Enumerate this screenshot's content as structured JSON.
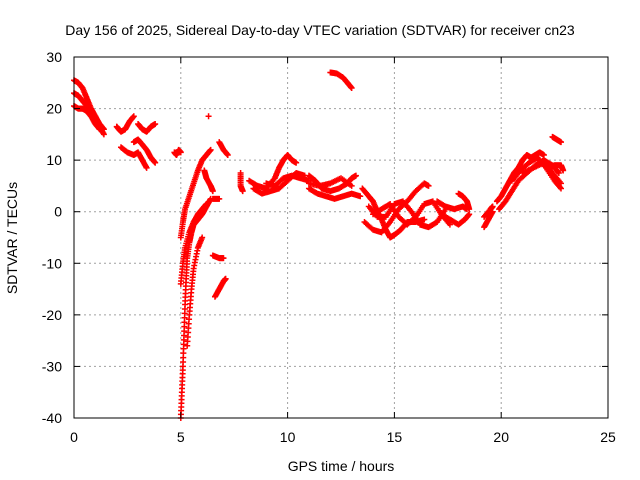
{
  "chart_data": {
    "type": "scatter",
    "title": "Day 156 of 2025, Sidereal Day-to-day VTEC variation (SDTVAR) for receiver cn23",
    "xlabel": "GPS time / hours",
    "ylabel": "SDTVAR / TECUs",
    "xlim": [
      0,
      25
    ],
    "ylim": [
      -40,
      30
    ],
    "xticks": [
      0,
      5,
      10,
      15,
      20,
      25
    ],
    "yticks": [
      -40,
      -30,
      -20,
      -10,
      0,
      10,
      20,
      30
    ],
    "grid": true,
    "marker": "+",
    "series": [
      {
        "name": "SDTVAR",
        "color": "#ff0000",
        "segments": [
          [
            [
              0.0,
              25.5
            ],
            [
              0.2,
              25.0
            ],
            [
              0.4,
              24.0
            ],
            [
              0.6,
              22.0
            ],
            [
              0.8,
              20.0
            ],
            [
              1.0,
              18.5
            ],
            [
              1.2,
              17.0
            ],
            [
              1.4,
              16.0
            ]
          ],
          [
            [
              0.0,
              23.0
            ],
            [
              0.2,
              22.5
            ],
            [
              0.4,
              21.5
            ],
            [
              0.6,
              20.5
            ],
            [
              0.8,
              19.5
            ],
            [
              1.0,
              18.0
            ],
            [
              1.2,
              16.5
            ],
            [
              1.4,
              15.0
            ]
          ],
          [
            [
              0.0,
              20.5
            ],
            [
              0.2,
              20.0
            ],
            [
              0.4,
              20.0
            ],
            [
              0.6,
              19.5
            ],
            [
              0.8,
              18.5
            ],
            [
              1.0,
              17.0
            ],
            [
              1.2,
              16.0
            ]
          ],
          [
            [
              2.0,
              16.5
            ],
            [
              2.2,
              15.5
            ],
            [
              2.4,
              16.0
            ],
            [
              2.6,
              17.5
            ],
            [
              2.8,
              18.5
            ]
          ],
          [
            [
              2.2,
              12.5
            ],
            [
              2.5,
              11.5
            ],
            [
              2.8,
              11.0
            ],
            [
              3.0,
              11.5
            ],
            [
              3.2,
              10.0
            ],
            [
              3.4,
              8.5
            ]
          ],
          [
            [
              2.8,
              13.5
            ],
            [
              3.0,
              14.0
            ],
            [
              3.2,
              13.0
            ],
            [
              3.4,
              12.0
            ],
            [
              3.6,
              10.5
            ],
            [
              3.8,
              9.5
            ]
          ],
          [
            [
              3.0,
              17.0
            ],
            [
              3.2,
              16.0
            ],
            [
              3.4,
              15.5
            ],
            [
              3.6,
              16.5
            ],
            [
              3.8,
              17.0
            ]
          ],
          [
            [
              4.7,
              11.5
            ],
            [
              4.8,
              11.0
            ],
            [
              4.9,
              12.0
            ],
            [
              5.0,
              11.5
            ]
          ],
          [
            [
              5.0,
              -40.0
            ],
            [
              5.05,
              -35.0
            ],
            [
              5.1,
              -30.0
            ],
            [
              5.15,
              -24.0
            ],
            [
              5.2,
              -18.0
            ],
            [
              5.25,
              -13.0
            ],
            [
              5.3,
              -9.0
            ],
            [
              5.4,
              -6.0
            ],
            [
              5.5,
              -4.0
            ],
            [
              5.6,
              -2.5
            ],
            [
              5.7,
              -2.0
            ],
            [
              5.8,
              -1.5
            ],
            [
              6.0,
              -0.5
            ],
            [
              6.2,
              1.0
            ],
            [
              6.4,
              2.5
            ]
          ],
          [
            [
              5.0,
              -5.0
            ],
            [
              5.1,
              -2.0
            ],
            [
              5.2,
              0.5
            ],
            [
              5.4,
              3.0
            ],
            [
              5.6,
              5.5
            ],
            [
              5.8,
              8.0
            ],
            [
              6.0,
              10.0
            ],
            [
              6.2,
              11.0
            ],
            [
              6.4,
              12.0
            ]
          ],
          [
            [
              5.0,
              -14.0
            ],
            [
              5.1,
              -10.0
            ],
            [
              5.2,
              -7.0
            ],
            [
              5.4,
              -4.0
            ],
            [
              5.6,
              -2.0
            ],
            [
              5.8,
              -0.5
            ],
            [
              6.0,
              0.5
            ],
            [
              6.2,
              1.5
            ]
          ],
          [
            [
              5.3,
              -26.0
            ],
            [
              5.4,
              -20.0
            ],
            [
              5.5,
              -15.0
            ],
            [
              5.6,
              -11.0
            ],
            [
              5.8,
              -7.0
            ],
            [
              6.0,
              -5.0
            ]
          ],
          [
            [
              6.1,
              8.0
            ],
            [
              6.2,
              6.5
            ],
            [
              6.4,
              5.0
            ],
            [
              6.5,
              4.0
            ]
          ],
          [
            [
              6.3,
              18.5
            ]
          ],
          [
            [
              6.5,
              2.5
            ],
            [
              6.8,
              2.5
            ]
          ],
          [
            [
              6.5,
              -8.5
            ],
            [
              6.8,
              -9.0
            ],
            [
              7.0,
              -9.0
            ]
          ],
          [
            [
              6.6,
              -16.5
            ],
            [
              6.8,
              -15.0
            ],
            [
              7.0,
              -13.5
            ],
            [
              7.1,
              -13.0
            ]
          ],
          [
            [
              6.8,
              13.5
            ],
            [
              7.0,
              12.0
            ],
            [
              7.2,
              11.0
            ]
          ],
          [
            [
              7.8,
              7.5
            ],
            [
              7.8,
              5.0
            ],
            [
              7.9,
              4.0
            ]
          ],
          [
            [
              8.2,
              6.0
            ],
            [
              8.6,
              5.0
            ],
            [
              9.0,
              4.5
            ],
            [
              9.4,
              6.5
            ],
            [
              9.6,
              8.5
            ],
            [
              9.8,
              10.0
            ],
            [
              10.0,
              11.0
            ],
            [
              10.2,
              10.0
            ],
            [
              10.4,
              9.5
            ]
          ],
          [
            [
              8.4,
              4.5
            ],
            [
              8.8,
              3.5
            ],
            [
              9.2,
              4.0
            ],
            [
              9.6,
              4.5
            ],
            [
              10.0,
              6.0
            ],
            [
              10.4,
              7.5
            ],
            [
              10.8,
              7.0
            ]
          ],
          [
            [
              9.0,
              5.5
            ],
            [
              9.4,
              5.0
            ],
            [
              9.8,
              6.5
            ],
            [
              10.2,
              7.0
            ],
            [
              10.6,
              6.5
            ],
            [
              11.0,
              6.0
            ]
          ],
          [
            [
              11.0,
              7.0
            ],
            [
              11.3,
              6.0
            ],
            [
              11.6,
              4.5
            ],
            [
              12.0,
              4.0
            ],
            [
              12.4,
              4.5
            ],
            [
              12.8,
              5.5
            ],
            [
              13.0,
              6.5
            ],
            [
              13.2,
              7.0
            ]
          ],
          [
            [
              11.0,
              4.5
            ],
            [
              11.4,
              3.5
            ],
            [
              11.8,
              3.0
            ],
            [
              12.2,
              2.5
            ],
            [
              12.6,
              3.0
            ],
            [
              13.0,
              3.5
            ],
            [
              13.4,
              3.0
            ]
          ],
          [
            [
              11.0,
              5.5
            ],
            [
              11.5,
              5.0
            ],
            [
              12.0,
              5.5
            ],
            [
              12.5,
              6.5
            ],
            [
              13.0,
              5.0
            ]
          ],
          [
            [
              12.0,
              27.0
            ],
            [
              12.3,
              26.8
            ],
            [
              12.6,
              26.0
            ],
            [
              12.8,
              25.0
            ],
            [
              13.0,
              24.0
            ]
          ],
          [
            [
              13.5,
              4.5
            ],
            [
              13.8,
              3.0
            ],
            [
              14.0,
              2.0
            ],
            [
              14.2,
              0.0
            ],
            [
              14.4,
              -1.5
            ],
            [
              14.6,
              -3.5
            ],
            [
              14.8,
              -5.0
            ],
            [
              15.0,
              -4.5
            ],
            [
              15.3,
              -3.5
            ],
            [
              15.6,
              -2.0
            ],
            [
              16.0,
              -2.0
            ],
            [
              16.4,
              -1.5
            ]
          ],
          [
            [
              13.6,
              -2.0
            ],
            [
              14.0,
              -3.5
            ],
            [
              14.4,
              -4.0
            ],
            [
              14.8,
              -2.0
            ],
            [
              15.2,
              0.5
            ],
            [
              15.6,
              2.0
            ],
            [
              16.0,
              4.0
            ],
            [
              16.4,
              5.5
            ],
            [
              16.6,
              5.0
            ]
          ],
          [
            [
              13.8,
              1.0
            ],
            [
              14.2,
              -1.0
            ],
            [
              14.6,
              -1.0
            ],
            [
              15.0,
              1.5
            ],
            [
              15.4,
              2.0
            ],
            [
              15.8,
              0.0
            ],
            [
              16.2,
              -2.5
            ],
            [
              16.6,
              -3.0
            ],
            [
              17.0,
              -2.0
            ],
            [
              17.4,
              0.5
            ]
          ],
          [
            [
              14.0,
              -0.5
            ],
            [
              14.4,
              0.5
            ],
            [
              14.8,
              1.5
            ],
            [
              15.2,
              -1.0
            ],
            [
              15.6,
              -2.5
            ],
            [
              16.0,
              -1.0
            ],
            [
              16.4,
              1.5
            ],
            [
              16.8,
              2.0
            ],
            [
              17.2,
              -0.5
            ],
            [
              17.6,
              -2.5
            ]
          ],
          [
            [
              17.0,
              2.0
            ],
            [
              17.4,
              1.0
            ],
            [
              17.8,
              0.5
            ],
            [
              18.2,
              1.0
            ],
            [
              18.4,
              0.5
            ]
          ],
          [
            [
              17.2,
              -0.5
            ],
            [
              17.6,
              -1.5
            ],
            [
              18.0,
              -2.5
            ],
            [
              18.3,
              -1.5
            ],
            [
              18.5,
              -0.5
            ]
          ],
          [
            [
              18.0,
              3.5
            ],
            [
              18.2,
              3.0
            ],
            [
              18.4,
              2.0
            ],
            [
              18.5,
              0.5
            ]
          ],
          [
            [
              19.2,
              -3.0
            ],
            [
              19.4,
              -1.5
            ],
            [
              19.6,
              0.0
            ]
          ],
          [
            [
              19.2,
              -1.0
            ],
            [
              19.5,
              0.5
            ],
            [
              19.6,
              1.0
            ]
          ],
          [
            [
              19.8,
              2.0
            ],
            [
              20.0,
              3.0
            ],
            [
              20.2,
              4.5
            ],
            [
              20.4,
              6.0
            ],
            [
              20.6,
              7.5
            ],
            [
              20.8,
              8.5
            ],
            [
              21.0,
              10.0
            ],
            [
              21.2,
              11.0
            ],
            [
              21.4,
              10.5
            ],
            [
              21.6,
              11.0
            ],
            [
              21.8,
              11.5
            ],
            [
              22.0,
              11.0
            ]
          ],
          [
            [
              19.9,
              0.5
            ],
            [
              20.2,
              2.0
            ],
            [
              20.5,
              4.0
            ],
            [
              20.8,
              6.0
            ],
            [
              21.2,
              7.5
            ],
            [
              21.6,
              9.0
            ],
            [
              22.0,
              10.0
            ],
            [
              22.4,
              9.0
            ],
            [
              22.7,
              7.5
            ]
          ],
          [
            [
              20.5,
              6.0
            ],
            [
              20.9,
              8.0
            ],
            [
              21.3,
              9.5
            ],
            [
              21.7,
              10.5
            ],
            [
              22.1,
              8.5
            ],
            [
              22.5,
              6.0
            ],
            [
              22.8,
              4.5
            ]
          ],
          [
            [
              21.0,
              7.5
            ],
            [
              21.5,
              8.5
            ],
            [
              22.0,
              9.5
            ],
            [
              22.4,
              7.5
            ],
            [
              22.8,
              5.5
            ]
          ],
          [
            [
              22.2,
              8.5
            ],
            [
              22.5,
              9.0
            ],
            [
              22.8,
              9.0
            ],
            [
              22.9,
              8.0
            ]
          ],
          [
            [
              22.4,
              14.5
            ],
            [
              22.6,
              14.0
            ],
            [
              22.8,
              13.5
            ]
          ]
        ]
      }
    ]
  }
}
